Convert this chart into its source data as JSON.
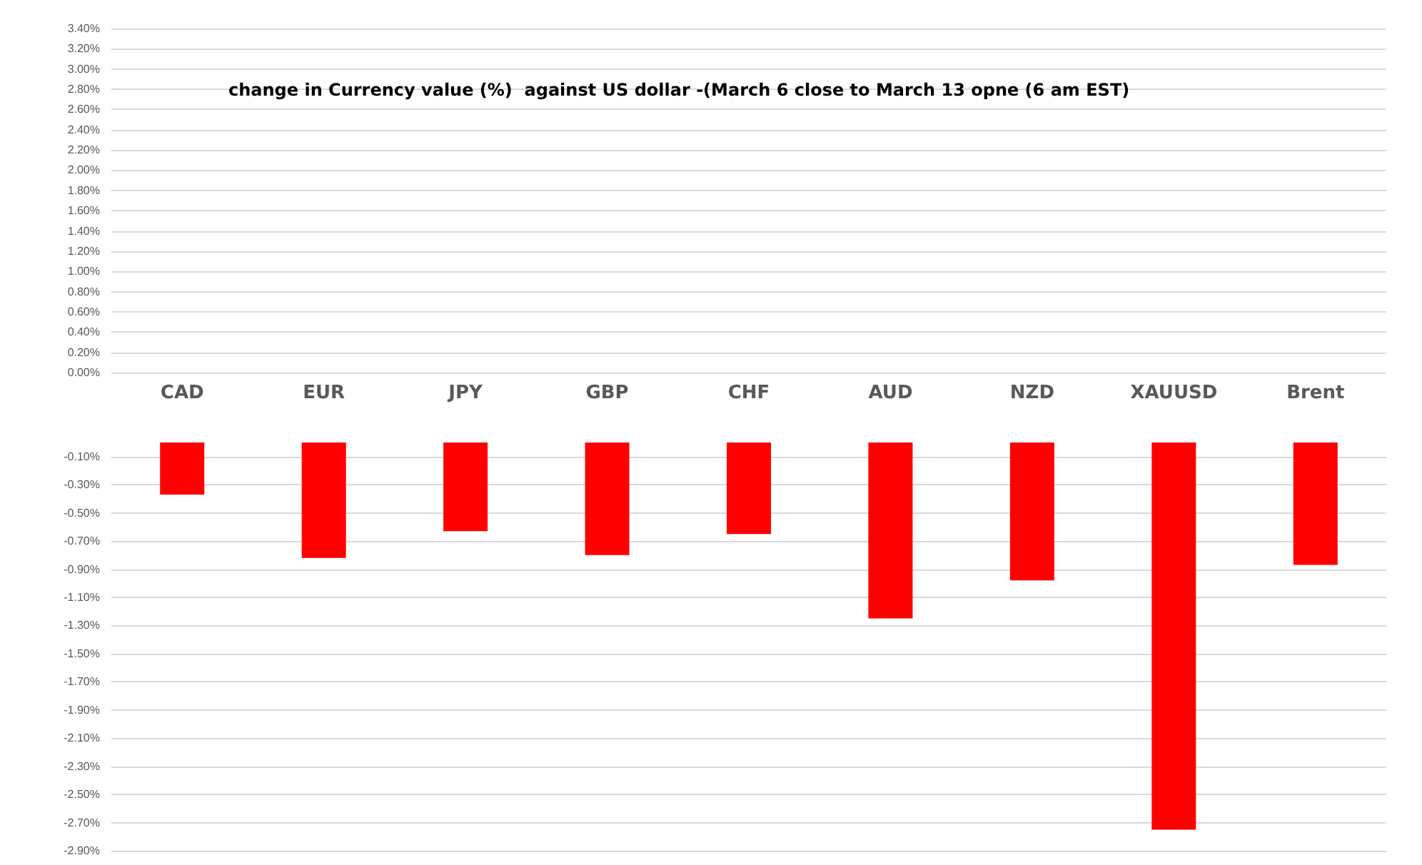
{
  "chart_data": [
    {
      "type": "bar",
      "title": "change in Currency value (%)  against US dollar -(March 6 close to March 13 opne (6 am EST)",
      "categories": [
        "CAD",
        "EUR",
        "JPY",
        "GBP",
        "CHF",
        "AUD",
        "NZD",
        "XAUUSD",
        "Brent"
      ],
      "values": [
        null,
        null,
        null,
        null,
        null,
        null,
        null,
        null,
        null
      ],
      "ylim": [
        0,
        3.4
      ],
      "yticks": [
        {
          "value": 0,
          "label": "0.00%"
        },
        {
          "value": 0.2,
          "label": "0.20%"
        },
        {
          "value": 0.4,
          "label": "0.40%"
        },
        {
          "value": 0.6,
          "label": "0.60%"
        },
        {
          "value": 0.8,
          "label": "0.80%"
        },
        {
          "value": 1.0,
          "label": "1.00%"
        },
        {
          "value": 1.2,
          "label": "1.20%"
        },
        {
          "value": 1.4,
          "label": "1.40%"
        },
        {
          "value": 1.6,
          "label": "1.60%"
        },
        {
          "value": 1.8,
          "label": "1.80%"
        },
        {
          "value": 2.0,
          "label": "2.00%"
        },
        {
          "value": 2.2,
          "label": "2.20%"
        },
        {
          "value": 2.4,
          "label": "2.40%"
        },
        {
          "value": 2.6,
          "label": "2.60%"
        },
        {
          "value": 2.8,
          "label": "2.80%"
        },
        {
          "value": 3.0,
          "label": "3.00%"
        },
        {
          "value": 3.2,
          "label": "3.20%"
        },
        {
          "value": 3.4,
          "label": "3.40%"
        }
      ],
      "grid": "y"
    },
    {
      "type": "bar",
      "categories": [
        null,
        null,
        null,
        null,
        null,
        null,
        null,
        null,
        null
      ],
      "values": [
        -0.37,
        -0.82,
        -0.63,
        -0.8,
        -0.65,
        -1.25,
        -0.98,
        -2.75,
        -0.87
      ],
      "color": "#ff0000",
      "ylim": [
        -2.9,
        0
      ],
      "yticks": [
        {
          "value": -0.1,
          "label": "-0.10%"
        },
        {
          "value": -0.3,
          "label": "-0.30%"
        },
        {
          "value": -0.5,
          "label": "-0.50%"
        },
        {
          "value": -0.7,
          "label": "-0.70%"
        },
        {
          "value": -0.9,
          "label": "-0.90%"
        },
        {
          "value": -1.1,
          "label": "-1.10%"
        },
        {
          "value": -1.3,
          "label": "-1.30%"
        },
        {
          "value": -1.5,
          "label": "-1.50%"
        },
        {
          "value": -1.7,
          "label": "-1.70%"
        },
        {
          "value": -1.9,
          "label": "-1.90%"
        },
        {
          "value": -2.1,
          "label": "-2.10%"
        },
        {
          "value": -2.3,
          "label": "-2.30%"
        },
        {
          "value": -2.5,
          "label": "-2.50%"
        },
        {
          "value": -2.7,
          "label": "-2.70%"
        },
        {
          "value": -2.9,
          "label": "-2.90%"
        }
      ],
      "grid": "y"
    }
  ]
}
